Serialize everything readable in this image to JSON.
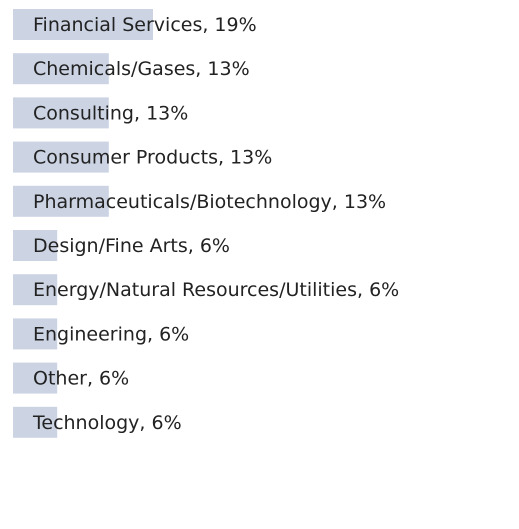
{
  "chart_data": {
    "type": "bar",
    "categories": [
      "Financial Services, 19%",
      "Chemicals/Gases, 13%",
      "Consulting, 13%",
      "Consumer Products, 13%",
      "Pharmaceuticals/Biotechnology, 13%",
      "Design/Fine Arts, 6%",
      "Energy/Natural Resources/Utilities, 6%",
      "Engineering, 6%",
      "Other, 6%",
      "Technology, 6%"
    ],
    "values": [
      19,
      13,
      13,
      13,
      13,
      6,
      6,
      6,
      6,
      6
    ],
    "color": "#ccd4e4"
  }
}
